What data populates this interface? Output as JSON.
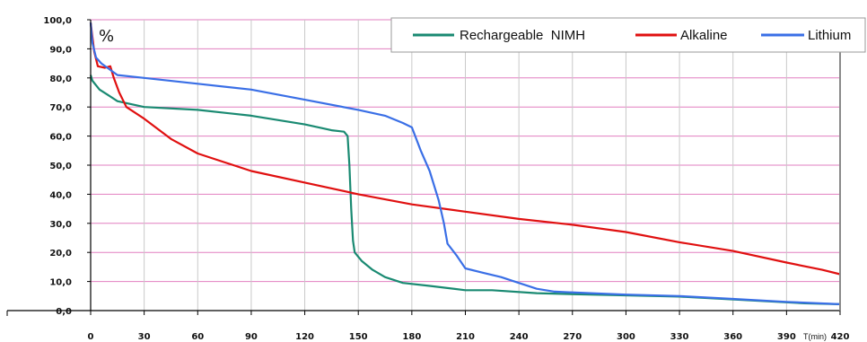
{
  "chart_data": {
    "type": "line",
    "title": "",
    "ylabel": "%",
    "xlabel": "T(min)",
    "xlim": [
      0,
      420
    ],
    "ylim": [
      0,
      100
    ],
    "x_ticks": [
      0,
      30,
      60,
      90,
      120,
      150,
      180,
      210,
      240,
      270,
      300,
      330,
      360,
      390,
      420
    ],
    "y_ticks": [
      "0,0",
      "10,0",
      "20,0",
      "30,0",
      "40,0",
      "50,0",
      "60,0",
      "70,0",
      "80,0",
      "90,0",
      "100,0"
    ],
    "grid": "horizontal, pink",
    "legend_position": "top-right",
    "series": [
      {
        "name": "Rechargeable  NIMH",
        "color": "#1a8a72",
        "points": [
          [
            0,
            81
          ],
          [
            1,
            79
          ],
          [
            5,
            76
          ],
          [
            10,
            74
          ],
          [
            15,
            72
          ],
          [
            30,
            70
          ],
          [
            60,
            69
          ],
          [
            90,
            67
          ],
          [
            120,
            64
          ],
          [
            135,
            62
          ],
          [
            142,
            61.5
          ],
          [
            144,
            60
          ],
          [
            145,
            50
          ],
          [
            146,
            35
          ],
          [
            147,
            24
          ],
          [
            148,
            20
          ],
          [
            152,
            17
          ],
          [
            158,
            14
          ],
          [
            165,
            11.5
          ],
          [
            175,
            9.5
          ],
          [
            190,
            8.5
          ],
          [
            210,
            7
          ],
          [
            225,
            7
          ],
          [
            250,
            6
          ],
          [
            280,
            5.5
          ],
          [
            330,
            4.8
          ],
          [
            370,
            3.5
          ],
          [
            400,
            2.5
          ],
          [
            420,
            2.2
          ]
        ]
      },
      {
        "name": "Alkaline",
        "color": "#e01010",
        "points": [
          [
            0,
            99
          ],
          [
            2,
            89
          ],
          [
            4,
            84
          ],
          [
            8,
            83.5
          ],
          [
            11,
            84
          ],
          [
            13,
            80
          ],
          [
            16,
            75
          ],
          [
            20,
            70
          ],
          [
            30,
            66
          ],
          [
            45,
            59
          ],
          [
            60,
            54
          ],
          [
            90,
            48
          ],
          [
            120,
            44
          ],
          [
            150,
            40
          ],
          [
            180,
            36.5
          ],
          [
            210,
            34
          ],
          [
            240,
            31.5
          ],
          [
            270,
            29.5
          ],
          [
            300,
            27
          ],
          [
            330,
            23.5
          ],
          [
            360,
            20.5
          ],
          [
            390,
            16.5
          ],
          [
            410,
            14
          ],
          [
            420,
            12.5
          ]
        ]
      },
      {
        "name": "Lithium",
        "color": "#3a6fe6",
        "points": [
          [
            0,
            99
          ],
          [
            1,
            92
          ],
          [
            3,
            87
          ],
          [
            6,
            85
          ],
          [
            15,
            81
          ],
          [
            30,
            80
          ],
          [
            60,
            78
          ],
          [
            90,
            76
          ],
          [
            120,
            72.5
          ],
          [
            150,
            69
          ],
          [
            165,
            67
          ],
          [
            175,
            64.5
          ],
          [
            180,
            63
          ],
          [
            185,
            55
          ],
          [
            190,
            48
          ],
          [
            195,
            38
          ],
          [
            198,
            30
          ],
          [
            200,
            23
          ],
          [
            205,
            19
          ],
          [
            210,
            14.5
          ],
          [
            220,
            13
          ],
          [
            230,
            11.5
          ],
          [
            240,
            9.5
          ],
          [
            250,
            7.5
          ],
          [
            260,
            6.5
          ],
          [
            280,
            6
          ],
          [
            300,
            5.5
          ],
          [
            330,
            5
          ],
          [
            360,
            4
          ],
          [
            390,
            3
          ],
          [
            420,
            2.2
          ]
        ]
      }
    ]
  }
}
